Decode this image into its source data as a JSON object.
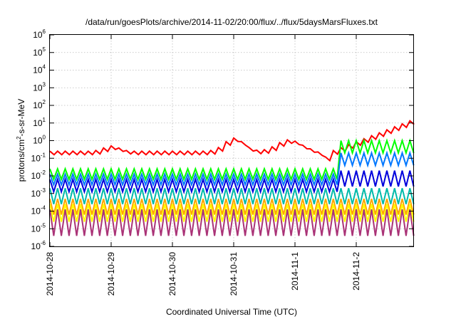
{
  "chart_data": {
    "type": "line",
    "title": "/data/run/goesPlots/archive/2014-11-02/20:00/flux/../flux/5daysMarsFluxes.txt",
    "xlabel": "Coordinated Universal Time (UTC)",
    "ylabel": {
      "base": "protons/cm",
      "exp": "2",
      "rest": "-s-sr-MeV"
    },
    "yscale": "log",
    "ylim_exp": [
      -6,
      6
    ],
    "ytick_exponents": [
      "-6",
      "-5",
      "-4",
      "-3",
      "-2",
      "-1",
      "0",
      "1",
      "2",
      "3",
      "4",
      "5",
      "6"
    ],
    "ytick_base": "10",
    "x_range_days": [
      0,
      5.95
    ],
    "xtick_labels": [
      "2014-10-28",
      "2014-10-29",
      "2014-10-30",
      "2014-10-31",
      "2014-11-1",
      "2014-11-2"
    ],
    "grid": true,
    "legend": "none",
    "sawtooth_period_days": 0.125,
    "step_day": 4.75,
    "series": [
      {
        "color": "#ff0000",
        "kind": "red",
        "base_log": -0.7
      },
      {
        "color": "#00ff00",
        "kind": "saw",
        "peak_before": -1.6,
        "trough_before": -2.2,
        "peak_after": 0.0,
        "trough_after": -0.7
      },
      {
        "color": "#0078ff",
        "kind": "saw",
        "peak_before": -1.9,
        "trough_before": -2.5,
        "peak_after": -0.7,
        "trough_after": -1.4
      },
      {
        "color": "#0000dd",
        "kind": "saw",
        "peak_before": -2.2,
        "trough_before": -2.9,
        "peak_after": -1.7,
        "trough_after": -2.6
      },
      {
        "color": "#00bbaa",
        "kind": "saw",
        "peak_before": -2.7,
        "trough_before": -3.6,
        "peak_after": -2.7,
        "trough_after": -3.6
      },
      {
        "color": "#ffa500",
        "kind": "saw",
        "peak_before": -3.3,
        "trough_before": -4.2,
        "peak_after": -3.3,
        "trough_after": -4.2
      },
      {
        "color": "#ffff00",
        "kind": "saw",
        "peak_before": -3.6,
        "trough_before": -4.6,
        "peak_after": -3.6,
        "trough_after": -4.6
      },
      {
        "color": "#aa3377",
        "kind": "saw",
        "peak_before": -3.9,
        "trough_before": -5.4,
        "peak_after": -3.9,
        "trough_after": -5.4
      }
    ]
  }
}
